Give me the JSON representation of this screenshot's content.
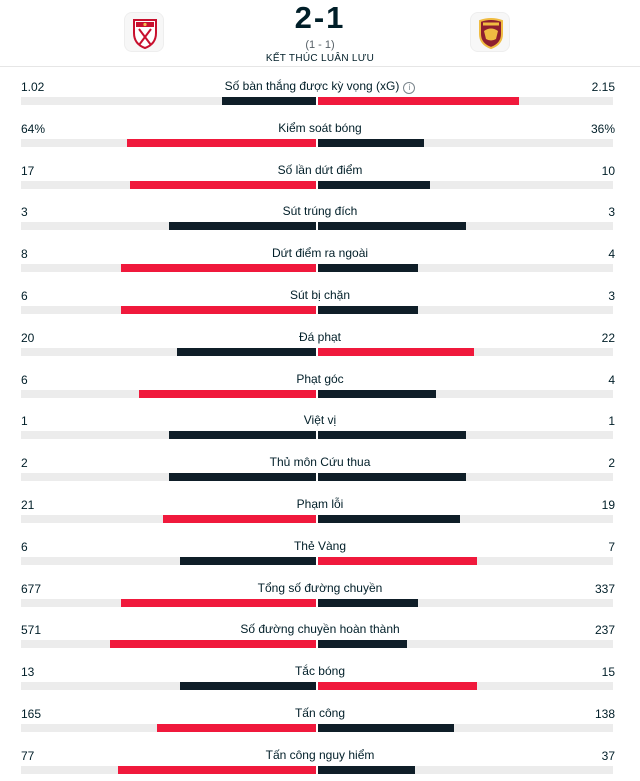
{
  "match": {
    "score": "2-1",
    "aggregate": "(1 - 1)",
    "status": "KẾT THÚC LUÂN LƯU",
    "home_logo_icon": "sevilla-crest-icon",
    "away_logo_icon": "roma-crest-icon"
  },
  "colors": {
    "red": "#f0193c",
    "dark": "#0f1e28",
    "track": "#ececec"
  },
  "stats": [
    {
      "label": "Số bàn thắng được kỳ vọng (xG)",
      "left": "1.02",
      "right": "2.15",
      "left_fill": 0.32,
      "right_fill": 0.68,
      "left_color": "dark",
      "right_color": "red",
      "info": "i"
    },
    {
      "label": "Kiểm soát bóng",
      "left": "64%",
      "right": "36%",
      "left_fill": 0.64,
      "right_fill": 0.36,
      "left_color": "red",
      "right_color": "dark"
    },
    {
      "label": "Số lần dứt điểm",
      "left": "17",
      "right": "10",
      "left_fill": 0.63,
      "right_fill": 0.38,
      "left_color": "red",
      "right_color": "dark"
    },
    {
      "label": "Sút trúng đích",
      "left": "3",
      "right": "3",
      "left_fill": 0.5,
      "right_fill": 0.5,
      "left_color": "dark",
      "right_color": "dark"
    },
    {
      "label": "Dứt điểm ra ngoài",
      "left": "8",
      "right": "4",
      "left_fill": 0.66,
      "right_fill": 0.34,
      "left_color": "red",
      "right_color": "dark"
    },
    {
      "label": "Sút bị chặn",
      "left": "6",
      "right": "3",
      "left_fill": 0.66,
      "right_fill": 0.34,
      "left_color": "red",
      "right_color": "dark"
    },
    {
      "label": "Đá phạt",
      "left": "20",
      "right": "22",
      "left_fill": 0.47,
      "right_fill": 0.53,
      "left_color": "dark",
      "right_color": "red"
    },
    {
      "label": "Phạt góc",
      "left": "6",
      "right": "4",
      "left_fill": 0.6,
      "right_fill": 0.4,
      "left_color": "red",
      "right_color": "dark"
    },
    {
      "label": "Việt vị",
      "left": "1",
      "right": "1",
      "left_fill": 0.5,
      "right_fill": 0.5,
      "left_color": "dark",
      "right_color": "dark"
    },
    {
      "label": "Thủ môn Cứu thua",
      "left": "2",
      "right": "2",
      "left_fill": 0.5,
      "right_fill": 0.5,
      "left_color": "dark",
      "right_color": "dark"
    },
    {
      "label": "Phạm lỗi",
      "left": "21",
      "right": "19",
      "left_fill": 0.52,
      "right_fill": 0.48,
      "left_color": "red",
      "right_color": "dark"
    },
    {
      "label": "Thẻ Vàng",
      "left": "6",
      "right": "7",
      "left_fill": 0.46,
      "right_fill": 0.54,
      "left_color": "dark",
      "right_color": "red"
    },
    {
      "label": "Tổng số đường chuyền",
      "left": "677",
      "right": "337",
      "left_fill": 0.66,
      "right_fill": 0.34,
      "left_color": "red",
      "right_color": "dark"
    },
    {
      "label": "Số đường chuyền hoàn thành",
      "left": "571",
      "right": "237",
      "left_fill": 0.7,
      "right_fill": 0.3,
      "left_color": "red",
      "right_color": "dark"
    },
    {
      "label": "Tắc bóng",
      "left": "13",
      "right": "15",
      "left_fill": 0.46,
      "right_fill": 0.54,
      "left_color": "dark",
      "right_color": "red"
    },
    {
      "label": "Tấn công",
      "left": "165",
      "right": "138",
      "left_fill": 0.54,
      "right_fill": 0.46,
      "left_color": "red",
      "right_color": "dark"
    },
    {
      "label": "Tấn công nguy hiểm",
      "left": "77",
      "right": "37",
      "left_fill": 0.67,
      "right_fill": 0.33,
      "left_color": "red",
      "right_color": "dark"
    }
  ]
}
